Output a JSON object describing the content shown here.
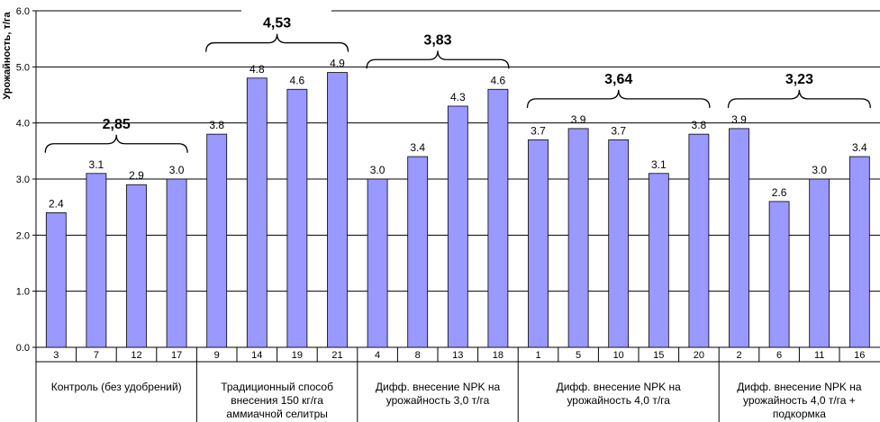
{
  "chart_data": {
    "type": "bar",
    "ylabel": "Урожайность, т/га",
    "ylim": [
      0,
      6
    ],
    "yticks": [
      "0.0",
      "1.0",
      "2.0",
      "3.0",
      "4.0",
      "5.0",
      "6.0"
    ],
    "grid": true,
    "bar_color": "#9999ff",
    "groups": [
      {
        "label_lines": [
          "Контроль (без удобрений)"
        ],
        "average": "2,85",
        "categories": [
          "3",
          "7",
          "12",
          "17"
        ],
        "values": [
          2.4,
          3.1,
          2.9,
          3.0
        ],
        "labels": [
          "2.4",
          "3.1",
          "2.9",
          "3.0"
        ]
      },
      {
        "label_lines": [
          "Традиционный способ",
          "внесения 150 кг/га",
          "аммиачной селитры"
        ],
        "average": "4,53",
        "categories": [
          "9",
          "14",
          "19",
          "21"
        ],
        "values": [
          3.8,
          4.8,
          4.6,
          4.9
        ],
        "labels": [
          "3.8",
          "4.8",
          "4.6",
          "4.9"
        ]
      },
      {
        "label_lines": [
          "Дифф. внесение NPK на",
          "урожайность 3,0 т/га"
        ],
        "average": "3,83",
        "categories": [
          "4",
          "8",
          "13",
          "18"
        ],
        "values": [
          3.0,
          3.4,
          4.3,
          4.6
        ],
        "labels": [
          "3.0",
          "3.4",
          "4.3",
          "4.6"
        ]
      },
      {
        "label_lines": [
          "Дифф. внесение NPK на",
          "урожайность 4,0 т/га"
        ],
        "average": "3,64",
        "categories": [
          "1",
          "5",
          "10",
          "15",
          "20"
        ],
        "values": [
          3.7,
          3.9,
          3.7,
          3.1,
          3.8
        ],
        "labels": [
          "3.7",
          "3.9",
          "3.7",
          "3.1",
          "3.8"
        ]
      },
      {
        "label_lines": [
          "Дифф. внесение NPK на",
          "урожайность 4,0 т/га +",
          "подкормка"
        ],
        "average": "3,23",
        "categories": [
          "2",
          "6",
          "11",
          "16"
        ],
        "values": [
          3.9,
          2.6,
          3.0,
          3.4
        ],
        "labels": [
          "3.9",
          "2.6",
          "3.0",
          "3.4"
        ]
      }
    ]
  }
}
